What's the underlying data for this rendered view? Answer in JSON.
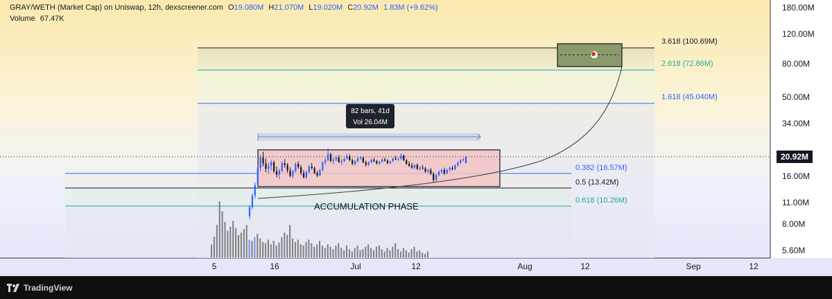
{
  "header": {
    "symbol": "GRAY/WETH (Market Cap) on Uniswap, 12h, dexscreener.com",
    "open_label": "O",
    "open": "19.080M",
    "high_label": "H",
    "high": "21.070M",
    "low_label": "L",
    "low": "19.020M",
    "close_label": "C",
    "close": "20.92M",
    "change": "1.83M (+9.62%)",
    "volume_label": "Volume",
    "volume": "67.47K"
  },
  "branding": {
    "name": "TradingView",
    "icon": "tradingview-logo-icon"
  },
  "colors": {
    "accent": "#2962ff",
    "up": "#2962ff",
    "down": "#131722",
    "box_fill": "#f2c4c4",
    "target_box": "#8a9a6a",
    "fib_green": "#26a69a",
    "fib_blue": "#2962ff"
  },
  "chart_data": {
    "type": "candlestick",
    "y_scale": "log",
    "y_ticks": [
      "180.00M",
      "120.00M",
      "80.00M",
      "50.00M",
      "34.00M",
      "16.00M",
      "11.00M",
      "8.00M",
      "5.60M"
    ],
    "x_ticks": [
      "5",
      "16",
      "Jul",
      "12",
      "Aug",
      "12",
      "Sep",
      "12"
    ],
    "last_price_label": "20.92M",
    "fib_levels": [
      {
        "label": "3.618 (100.69M)",
        "ratio": 3.618,
        "value": "100.69M"
      },
      {
        "label": "2.618 (72.86M)",
        "ratio": 2.618,
        "value": "72.86M"
      },
      {
        "label": "1.618 (45.040M)",
        "ratio": 1.618,
        "value": "45.040M"
      },
      {
        "label": "0.382 (16.57M)",
        "ratio": 0.382,
        "value": "16.57M"
      },
      {
        "label": "0.5 (13.42M)",
        "ratio": 0.5,
        "value": "13.42M"
      },
      {
        "label": "0.618 (10.26M)",
        "ratio": 0.618,
        "value": "10.26M"
      }
    ],
    "range_measure": {
      "bars_label": "82 bars, 41d",
      "vol_label": "Vol 26.04M"
    },
    "annotations": [
      "ACCUMULATION PHASE"
    ],
    "series": [
      {
        "name": "price",
        "candles": [
          [
            9.0,
            10.5,
            8.6,
            10.2
          ],
          [
            10.2,
            12.4,
            9.9,
            12.0
          ],
          [
            12.0,
            14.5,
            11.5,
            14.0
          ],
          [
            14.0,
            18.5,
            13.6,
            17.8
          ],
          [
            17.8,
            21.5,
            17.0,
            20.6
          ],
          [
            20.6,
            22.4,
            18.2,
            19.0
          ],
          [
            19.0,
            20.4,
            16.8,
            17.6
          ],
          [
            17.6,
            19.2,
            16.4,
            18.4
          ],
          [
            18.4,
            20.0,
            17.2,
            19.3
          ],
          [
            19.3,
            19.8,
            16.6,
            17.0
          ],
          [
            17.0,
            18.2,
            15.6,
            16.2
          ],
          [
            16.2,
            17.6,
            15.2,
            17.1
          ],
          [
            17.1,
            19.6,
            16.8,
            19.1
          ],
          [
            19.1,
            20.2,
            17.9,
            18.6
          ],
          [
            18.6,
            19.1,
            16.6,
            17.2
          ],
          [
            17.2,
            18.0,
            15.6,
            15.9
          ],
          [
            15.9,
            17.4,
            15.4,
            17.0
          ],
          [
            17.0,
            19.3,
            16.7,
            18.9
          ],
          [
            18.9,
            19.6,
            17.6,
            18.0
          ],
          [
            18.0,
            18.6,
            16.1,
            16.6
          ],
          [
            16.6,
            17.3,
            15.3,
            15.6
          ],
          [
            15.6,
            17.1,
            15.2,
            16.8
          ],
          [
            16.8,
            18.6,
            16.4,
            18.2
          ],
          [
            18.2,
            19.1,
            17.4,
            17.8
          ],
          [
            17.8,
            18.2,
            16.3,
            16.6
          ],
          [
            16.6,
            17.1,
            15.6,
            16.0
          ],
          [
            16.0,
            17.6,
            15.8,
            17.3
          ],
          [
            17.3,
            19.6,
            17.0,
            19.3
          ],
          [
            19.3,
            20.6,
            18.6,
            19.9
          ],
          [
            19.9,
            23.6,
            19.6,
            21.6
          ],
          [
            21.6,
            22.1,
            19.3,
            19.7
          ],
          [
            19.7,
            20.6,
            18.8,
            20.1
          ],
          [
            20.1,
            21.2,
            19.6,
            20.7
          ],
          [
            20.7,
            21.4,
            19.1,
            19.4
          ],
          [
            19.4,
            20.2,
            18.6,
            19.7
          ],
          [
            19.7,
            20.6,
            19.3,
            20.3
          ],
          [
            20.3,
            21.8,
            20.1,
            21.1
          ],
          [
            21.1,
            21.6,
            19.6,
            19.9
          ],
          [
            19.9,
            20.4,
            18.6,
            18.9
          ],
          [
            18.9,
            19.9,
            18.4,
            19.6
          ],
          [
            19.6,
            20.8,
            19.3,
            20.4
          ],
          [
            20.4,
            21.1,
            19.9,
            20.6
          ],
          [
            20.6,
            21.0,
            19.1,
            19.3
          ],
          [
            19.3,
            19.8,
            18.2,
            18.6
          ],
          [
            18.6,
            19.6,
            18.3,
            19.3
          ],
          [
            19.3,
            20.3,
            19.0,
            20.0
          ],
          [
            20.0,
            20.6,
            19.3,
            19.6
          ],
          [
            19.6,
            20.0,
            18.7,
            19.0
          ],
          [
            19.0,
            19.8,
            18.6,
            19.5
          ],
          [
            19.5,
            20.4,
            19.2,
            20.1
          ],
          [
            20.1,
            20.6,
            19.5,
            19.8
          ],
          [
            19.8,
            20.2,
            18.8,
            19.1
          ],
          [
            19.1,
            19.8,
            18.8,
            19.6
          ],
          [
            19.6,
            20.7,
            19.4,
            20.4
          ],
          [
            20.4,
            21.2,
            19.9,
            20.1
          ],
          [
            20.1,
            20.6,
            19.6,
            20.3
          ],
          [
            20.3,
            21.9,
            20.0,
            21.2
          ],
          [
            21.2,
            21.6,
            19.6,
            19.9
          ],
          [
            19.9,
            20.3,
            18.6,
            18.9
          ],
          [
            18.9,
            19.6,
            18.1,
            18.4
          ],
          [
            18.4,
            19.1,
            17.6,
            17.9
          ],
          [
            17.9,
            18.8,
            17.6,
            18.6
          ],
          [
            18.6,
            19.0,
            17.3,
            17.6
          ],
          [
            17.6,
            18.3,
            17.1,
            17.9
          ],
          [
            17.9,
            18.6,
            17.4,
            17.7
          ],
          [
            17.7,
            18.1,
            16.6,
            16.9
          ],
          [
            16.9,
            17.6,
            16.4,
            17.3
          ],
          [
            17.3,
            17.8,
            16.1,
            16.4
          ],
          [
            16.4,
            16.8,
            14.6,
            15.0
          ],
          [
            15.0,
            16.4,
            14.7,
            16.1
          ],
          [
            16.1,
            17.2,
            15.8,
            16.9
          ],
          [
            16.9,
            17.6,
            16.4,
            17.3
          ],
          [
            17.3,
            17.9,
            16.1,
            16.5
          ],
          [
            16.5,
            17.6,
            16.3,
            17.4
          ],
          [
            17.4,
            18.2,
            16.9,
            17.8
          ],
          [
            17.8,
            18.4,
            17.2,
            17.5
          ],
          [
            17.5,
            18.8,
            17.3,
            18.5
          ],
          [
            18.5,
            19.6,
            18.2,
            19.2
          ],
          [
            19.2,
            20.2,
            18.8,
            19.9
          ],
          [
            19.9,
            20.4,
            19.6,
            20.2
          ],
          [
            19.08,
            21.07,
            19.02,
            20.92
          ]
        ]
      },
      {
        "name": "volume",
        "values": [
          0.22,
          0.35,
          0.55,
          0.95,
          0.78,
          0.6,
          0.45,
          0.52,
          0.62,
          0.5,
          0.38,
          0.42,
          0.48,
          0.55,
          0.3,
          0.28,
          0.34,
          0.4,
          0.32,
          0.26,
          0.24,
          0.3,
          0.22,
          0.28,
          0.2,
          0.25,
          0.34,
          0.42,
          0.38,
          0.55,
          0.32,
          0.26,
          0.3,
          0.22,
          0.2,
          0.26,
          0.3,
          0.24,
          0.18,
          0.22,
          0.28,
          0.2,
          0.16,
          0.22,
          0.18,
          0.14,
          0.2,
          0.24,
          0.16,
          0.12,
          0.2,
          0.14,
          0.1,
          0.16,
          0.2,
          0.12,
          0.14,
          0.18,
          0.22,
          0.16,
          0.12,
          0.18,
          0.2,
          0.14,
          0.1,
          0.16,
          0.12,
          0.18,
          0.24,
          0.14,
          0.1,
          0.16,
          0.12,
          0.08,
          0.14,
          0.18,
          0.1,
          0.12,
          0.08,
          0.06,
          0.1
        ]
      }
    ]
  }
}
